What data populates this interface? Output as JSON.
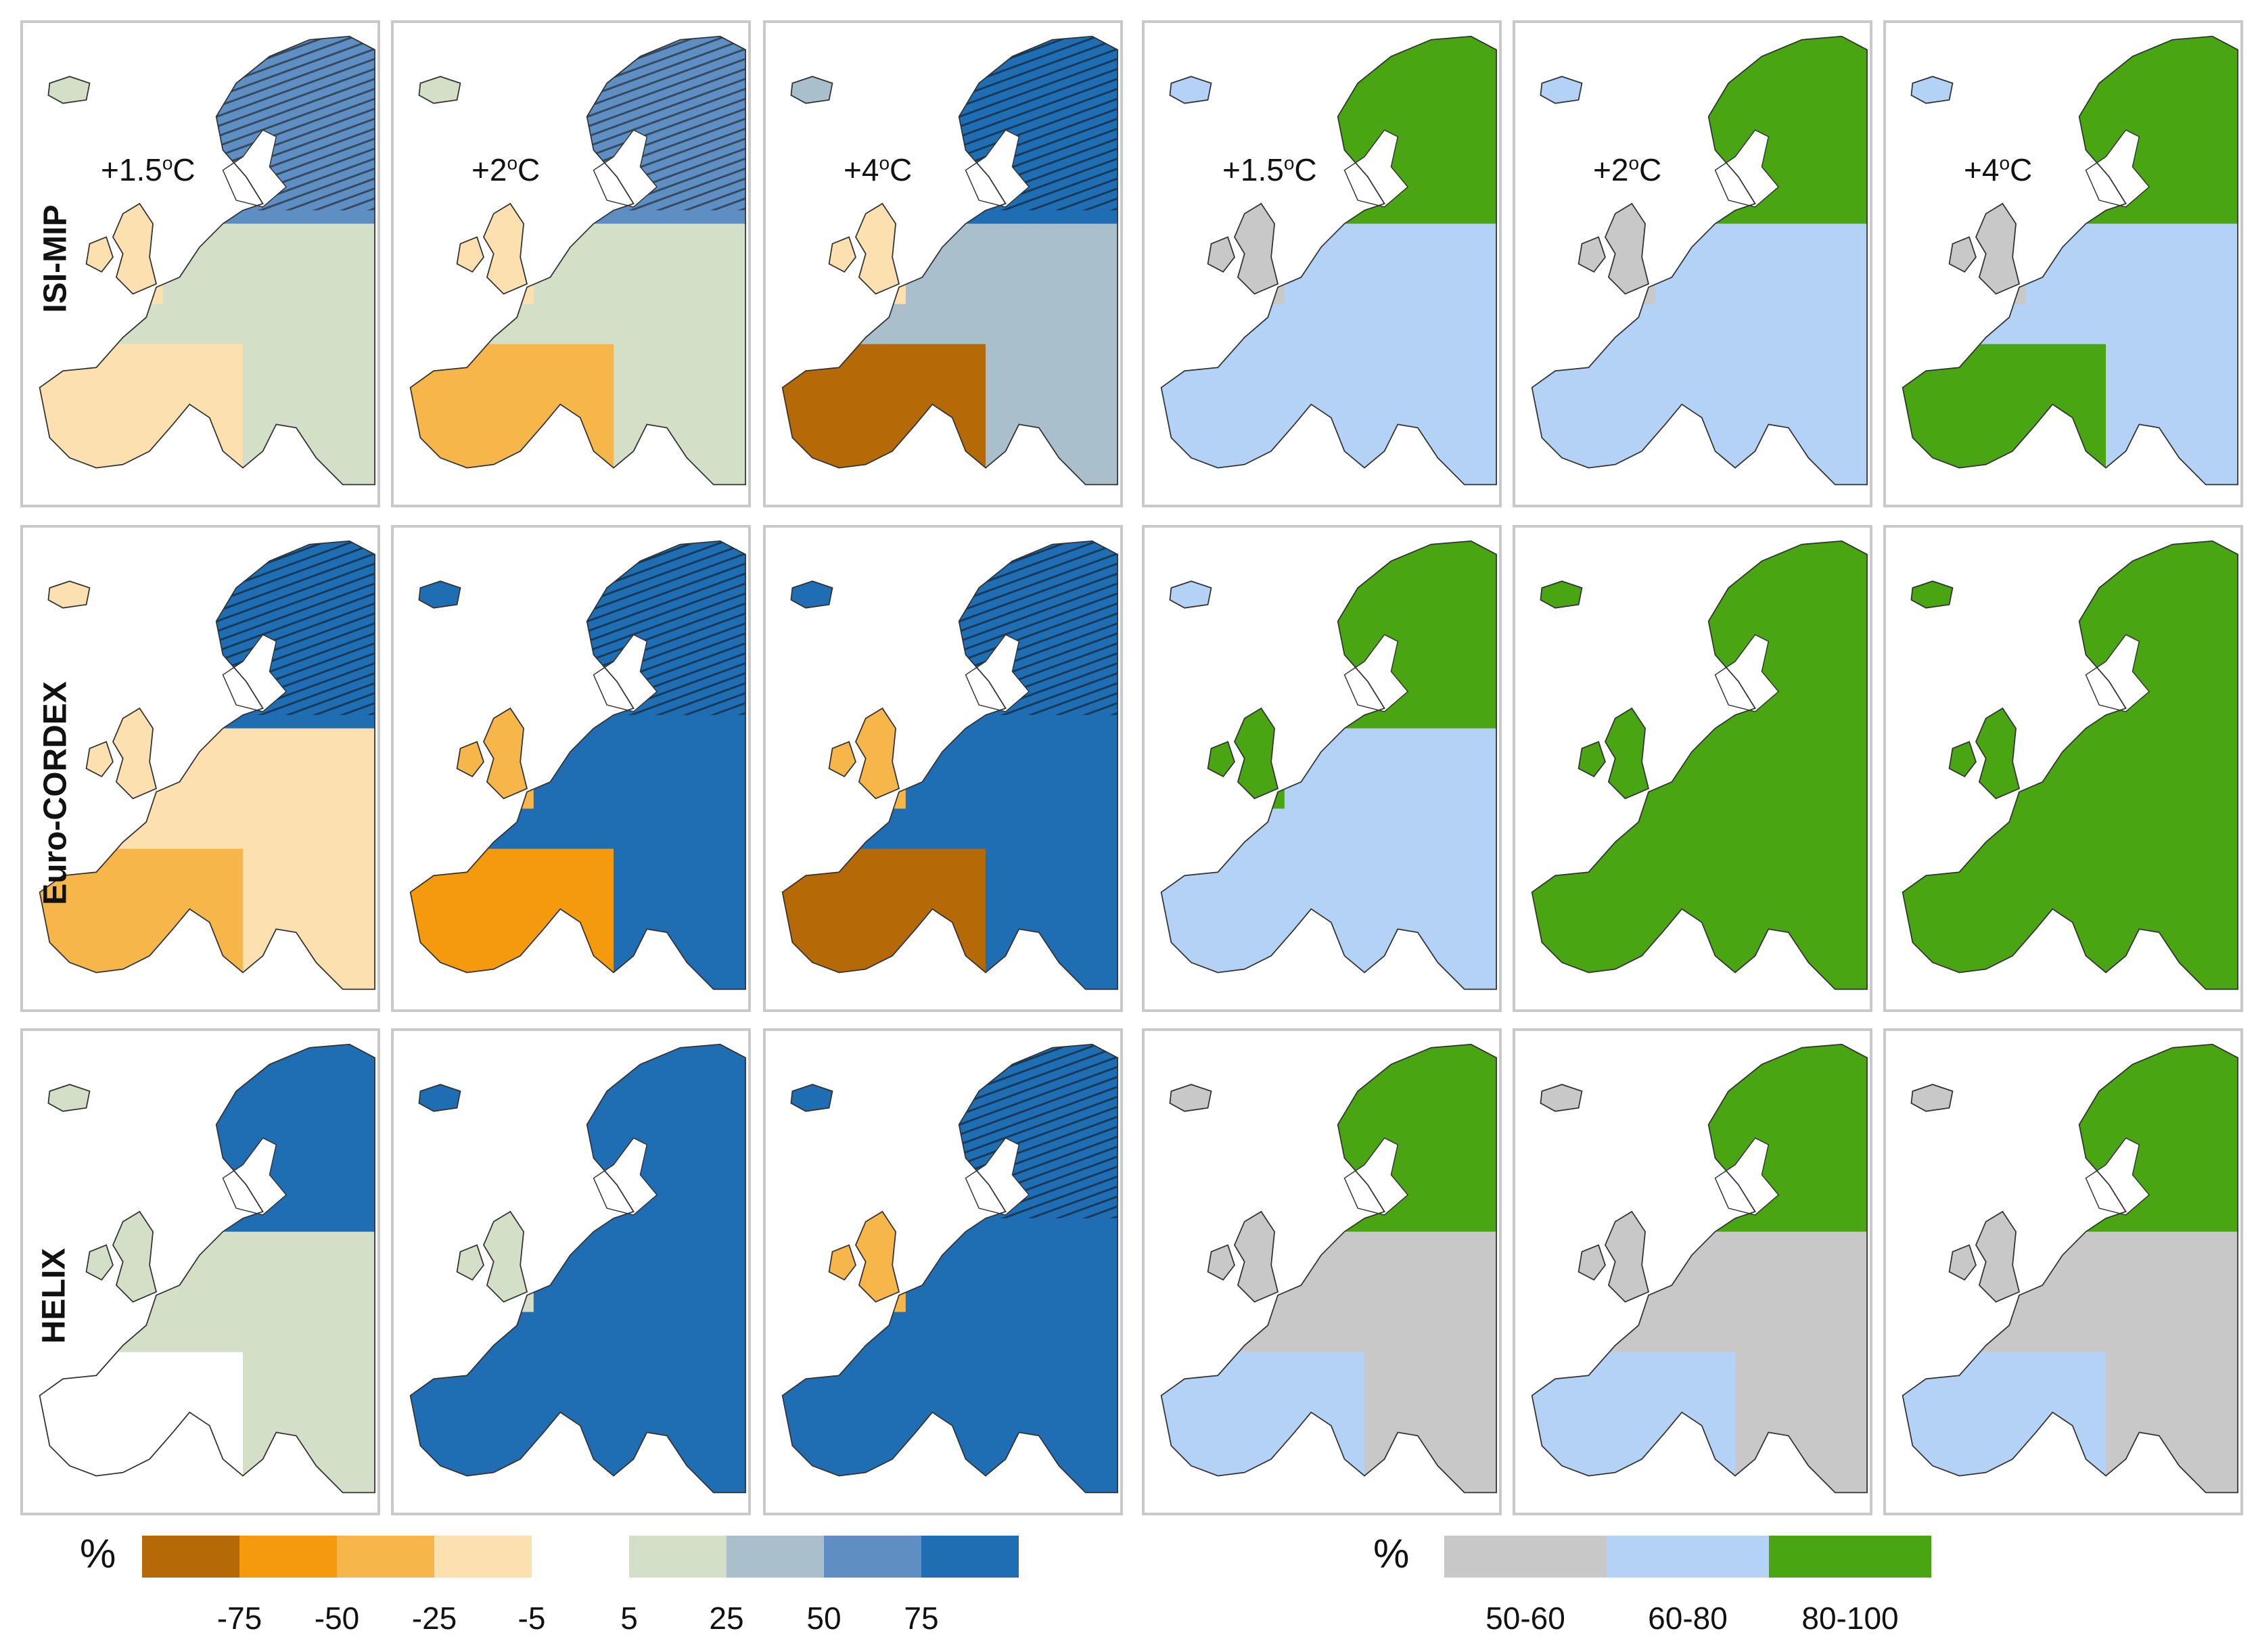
{
  "figure": {
    "row_labels": [
      "ISI-MIP",
      "Euro-CORDEX",
      "HELIX"
    ],
    "warming_levels": [
      "+1.5",
      "+2",
      "+4"
    ],
    "warming_superscript": "o",
    "warming_unit": "C",
    "change_legend": {
      "title": "%",
      "colors": [
        "#b56a07",
        "#f59a0c",
        "#f7b64a",
        "#fde0b0",
        "#ffffff",
        "#d4dfc8",
        "#a9bfcb",
        "#5f8fc2",
        "#1f6db3"
      ],
      "ticks": [
        "-75",
        "-50",
        "-25",
        "-5",
        "5",
        "25",
        "50",
        "75"
      ]
    },
    "agreement_legend": {
      "title": "%",
      "colors": [
        "#c8c8c8",
        "#b3d2f5",
        "#4aa512"
      ],
      "labels": [
        "50-60",
        "60-80",
        "80-100"
      ]
    }
  }
}
